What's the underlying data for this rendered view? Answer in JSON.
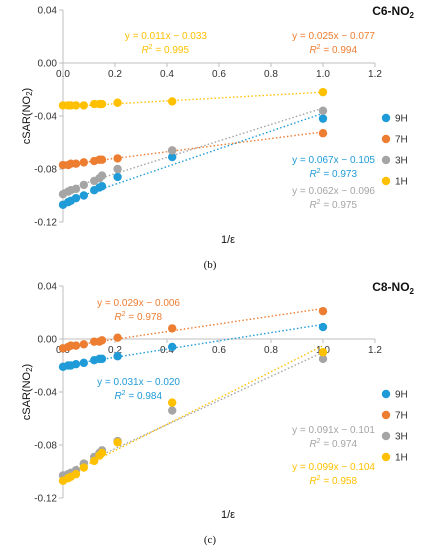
{
  "chart_data": [
    {
      "type": "scatter",
      "title": "C6-NO",
      "title_subscript": "2",
      "xlabel": "1/ε",
      "ylabel": "cSAR(NO",
      "ylabel_sub": "2",
      "ylabel_end": ")",
      "panel_label": "(b)",
      "xlim": [
        0,
        1.2
      ],
      "ylim": [
        -0.12,
        0.04
      ],
      "xticks": [
        "0.0",
        "0.2",
        "0.4",
        "0.6",
        "0.8",
        "1.0",
        "1.2"
      ],
      "yticks": [
        "0.04",
        "0.00",
        "-0.04",
        "-0.08",
        "-0.12"
      ],
      "legend_position": "right",
      "series": [
        {
          "name": "9H",
          "color": "#1f9bd7",
          "x": [
            0.0,
            0.02,
            0.03,
            0.05,
            0.08,
            0.12,
            0.14,
            0.15,
            0.21,
            0.42,
            1.0
          ],
          "y": [
            -0.107,
            -0.105,
            -0.104,
            -0.102,
            -0.1,
            -0.096,
            -0.094,
            -0.093,
            -0.086,
            -0.071,
            -0.042
          ],
          "fit": {
            "slope": 0.067,
            "intercept": -0.105
          },
          "equation": "y = 0.067x − 0.105",
          "r2_label": "R",
          "r2_value": " = 0.973"
        },
        {
          "name": "7H",
          "color": "#ed7d31",
          "x": [
            0.0,
            0.02,
            0.03,
            0.05,
            0.08,
            0.12,
            0.14,
            0.15,
            0.21,
            0.42,
            1.0
          ],
          "y": [
            -0.077,
            -0.077,
            -0.076,
            -0.076,
            -0.075,
            -0.074,
            -0.073,
            -0.073,
            -0.072,
            -0.066,
            -0.053
          ],
          "fit": {
            "slope": 0.025,
            "intercept": -0.077
          },
          "equation": "y = 0.025x − 0.077",
          "r2_label": "R",
          "r2_value": " = 0.994"
        },
        {
          "name": "3H",
          "color": "#a5a5a5",
          "x": [
            0.0,
            0.02,
            0.03,
            0.05,
            0.08,
            0.12,
            0.14,
            0.15,
            0.21,
            0.42,
            1.0
          ],
          "y": [
            -0.099,
            -0.097,
            -0.096,
            -0.095,
            -0.092,
            -0.089,
            -0.087,
            -0.085,
            -0.08,
            -0.066,
            -0.036
          ],
          "fit": {
            "slope": 0.062,
            "intercept": -0.096
          },
          "equation": "y = 0.062x − 0.096",
          "r2_label": "R",
          "r2_value": " = 0.975"
        },
        {
          "name": "1H",
          "color": "#ffc000",
          "x": [
            0.0,
            0.02,
            0.03,
            0.05,
            0.08,
            0.12,
            0.14,
            0.15,
            0.21,
            0.42,
            1.0
          ],
          "y": [
            -0.032,
            -0.032,
            -0.032,
            -0.032,
            -0.032,
            -0.031,
            -0.031,
            -0.031,
            -0.03,
            -0.029,
            -0.022
          ],
          "fit": {
            "slope": 0.011,
            "intercept": -0.033
          },
          "equation": "y = 0.011x − 0.033",
          "r2_label": "R",
          "r2_value": " = 0.995"
        }
      ]
    },
    {
      "type": "scatter",
      "title": "C8-NO",
      "title_subscript": "2",
      "xlabel": "1/ε",
      "ylabel": "cSAR(NO",
      "ylabel_sub": "2",
      "ylabel_end": ")",
      "panel_label": "(c)",
      "xlim": [
        0,
        1.2
      ],
      "ylim": [
        -0.12,
        0.04
      ],
      "xticks": [
        "0.0",
        "0.2",
        "0.4",
        "0.6",
        "0.8",
        "1.0",
        "1.2"
      ],
      "yticks": [
        "0.04",
        "0.00",
        "-0.04",
        "-0.08",
        "-0.12"
      ],
      "legend_position": "right",
      "series": [
        {
          "name": "9H",
          "color": "#1f9bd7",
          "x": [
            0.0,
            0.02,
            0.03,
            0.05,
            0.08,
            0.12,
            0.14,
            0.15,
            0.21,
            0.42,
            1.0
          ],
          "y": [
            -0.021,
            -0.02,
            -0.02,
            -0.019,
            -0.018,
            -0.016,
            -0.015,
            -0.015,
            -0.013,
            -0.006,
            0.009
          ],
          "fit": {
            "slope": 0.031,
            "intercept": -0.02
          },
          "equation": "y = 0.031x − 0.020",
          "r2_label": "R",
          "r2_value": " = 0.984"
        },
        {
          "name": "7H",
          "color": "#ed7d31",
          "x": [
            0.0,
            0.02,
            0.03,
            0.05,
            0.08,
            0.12,
            0.14,
            0.15,
            0.21,
            0.42,
            1.0
          ],
          "y": [
            -0.007,
            -0.006,
            -0.005,
            -0.005,
            -0.004,
            -0.002,
            -0.002,
            -0.001,
            0.001,
            0.008,
            0.021
          ],
          "fit": {
            "slope": 0.029,
            "intercept": -0.006
          },
          "equation": "y = 0.029x − 0.006",
          "r2_label": "R",
          "r2_value": " = 0.978"
        },
        {
          "name": "3H",
          "color": "#a5a5a5",
          "x": [
            0.0,
            0.02,
            0.03,
            0.05,
            0.08,
            0.12,
            0.14,
            0.15,
            0.21,
            0.42,
            1.0
          ],
          "y": [
            -0.103,
            -0.102,
            -0.101,
            -0.099,
            -0.094,
            -0.089,
            -0.086,
            -0.084,
            -0.077,
            -0.054,
            -0.015
          ],
          "fit": {
            "slope": 0.091,
            "intercept": -0.101
          },
          "equation": "y = 0.091x − 0.101",
          "r2_label": "R",
          "r2_value": " = 0.974"
        },
        {
          "name": "1H",
          "color": "#ffc000",
          "x": [
            0.0,
            0.02,
            0.03,
            0.05,
            0.08,
            0.12,
            0.14,
            0.15,
            0.21,
            0.42,
            1.0
          ],
          "y": [
            -0.107,
            -0.105,
            -0.104,
            -0.102,
            -0.097,
            -0.092,
            -0.088,
            -0.086,
            -0.078,
            -0.048,
            -0.01
          ],
          "fit": {
            "slope": 0.099,
            "intercept": -0.104
          },
          "equation": "y = 0.099x − 0.104",
          "r2_label": "R",
          "r2_value": " = 0.958"
        }
      ]
    }
  ]
}
